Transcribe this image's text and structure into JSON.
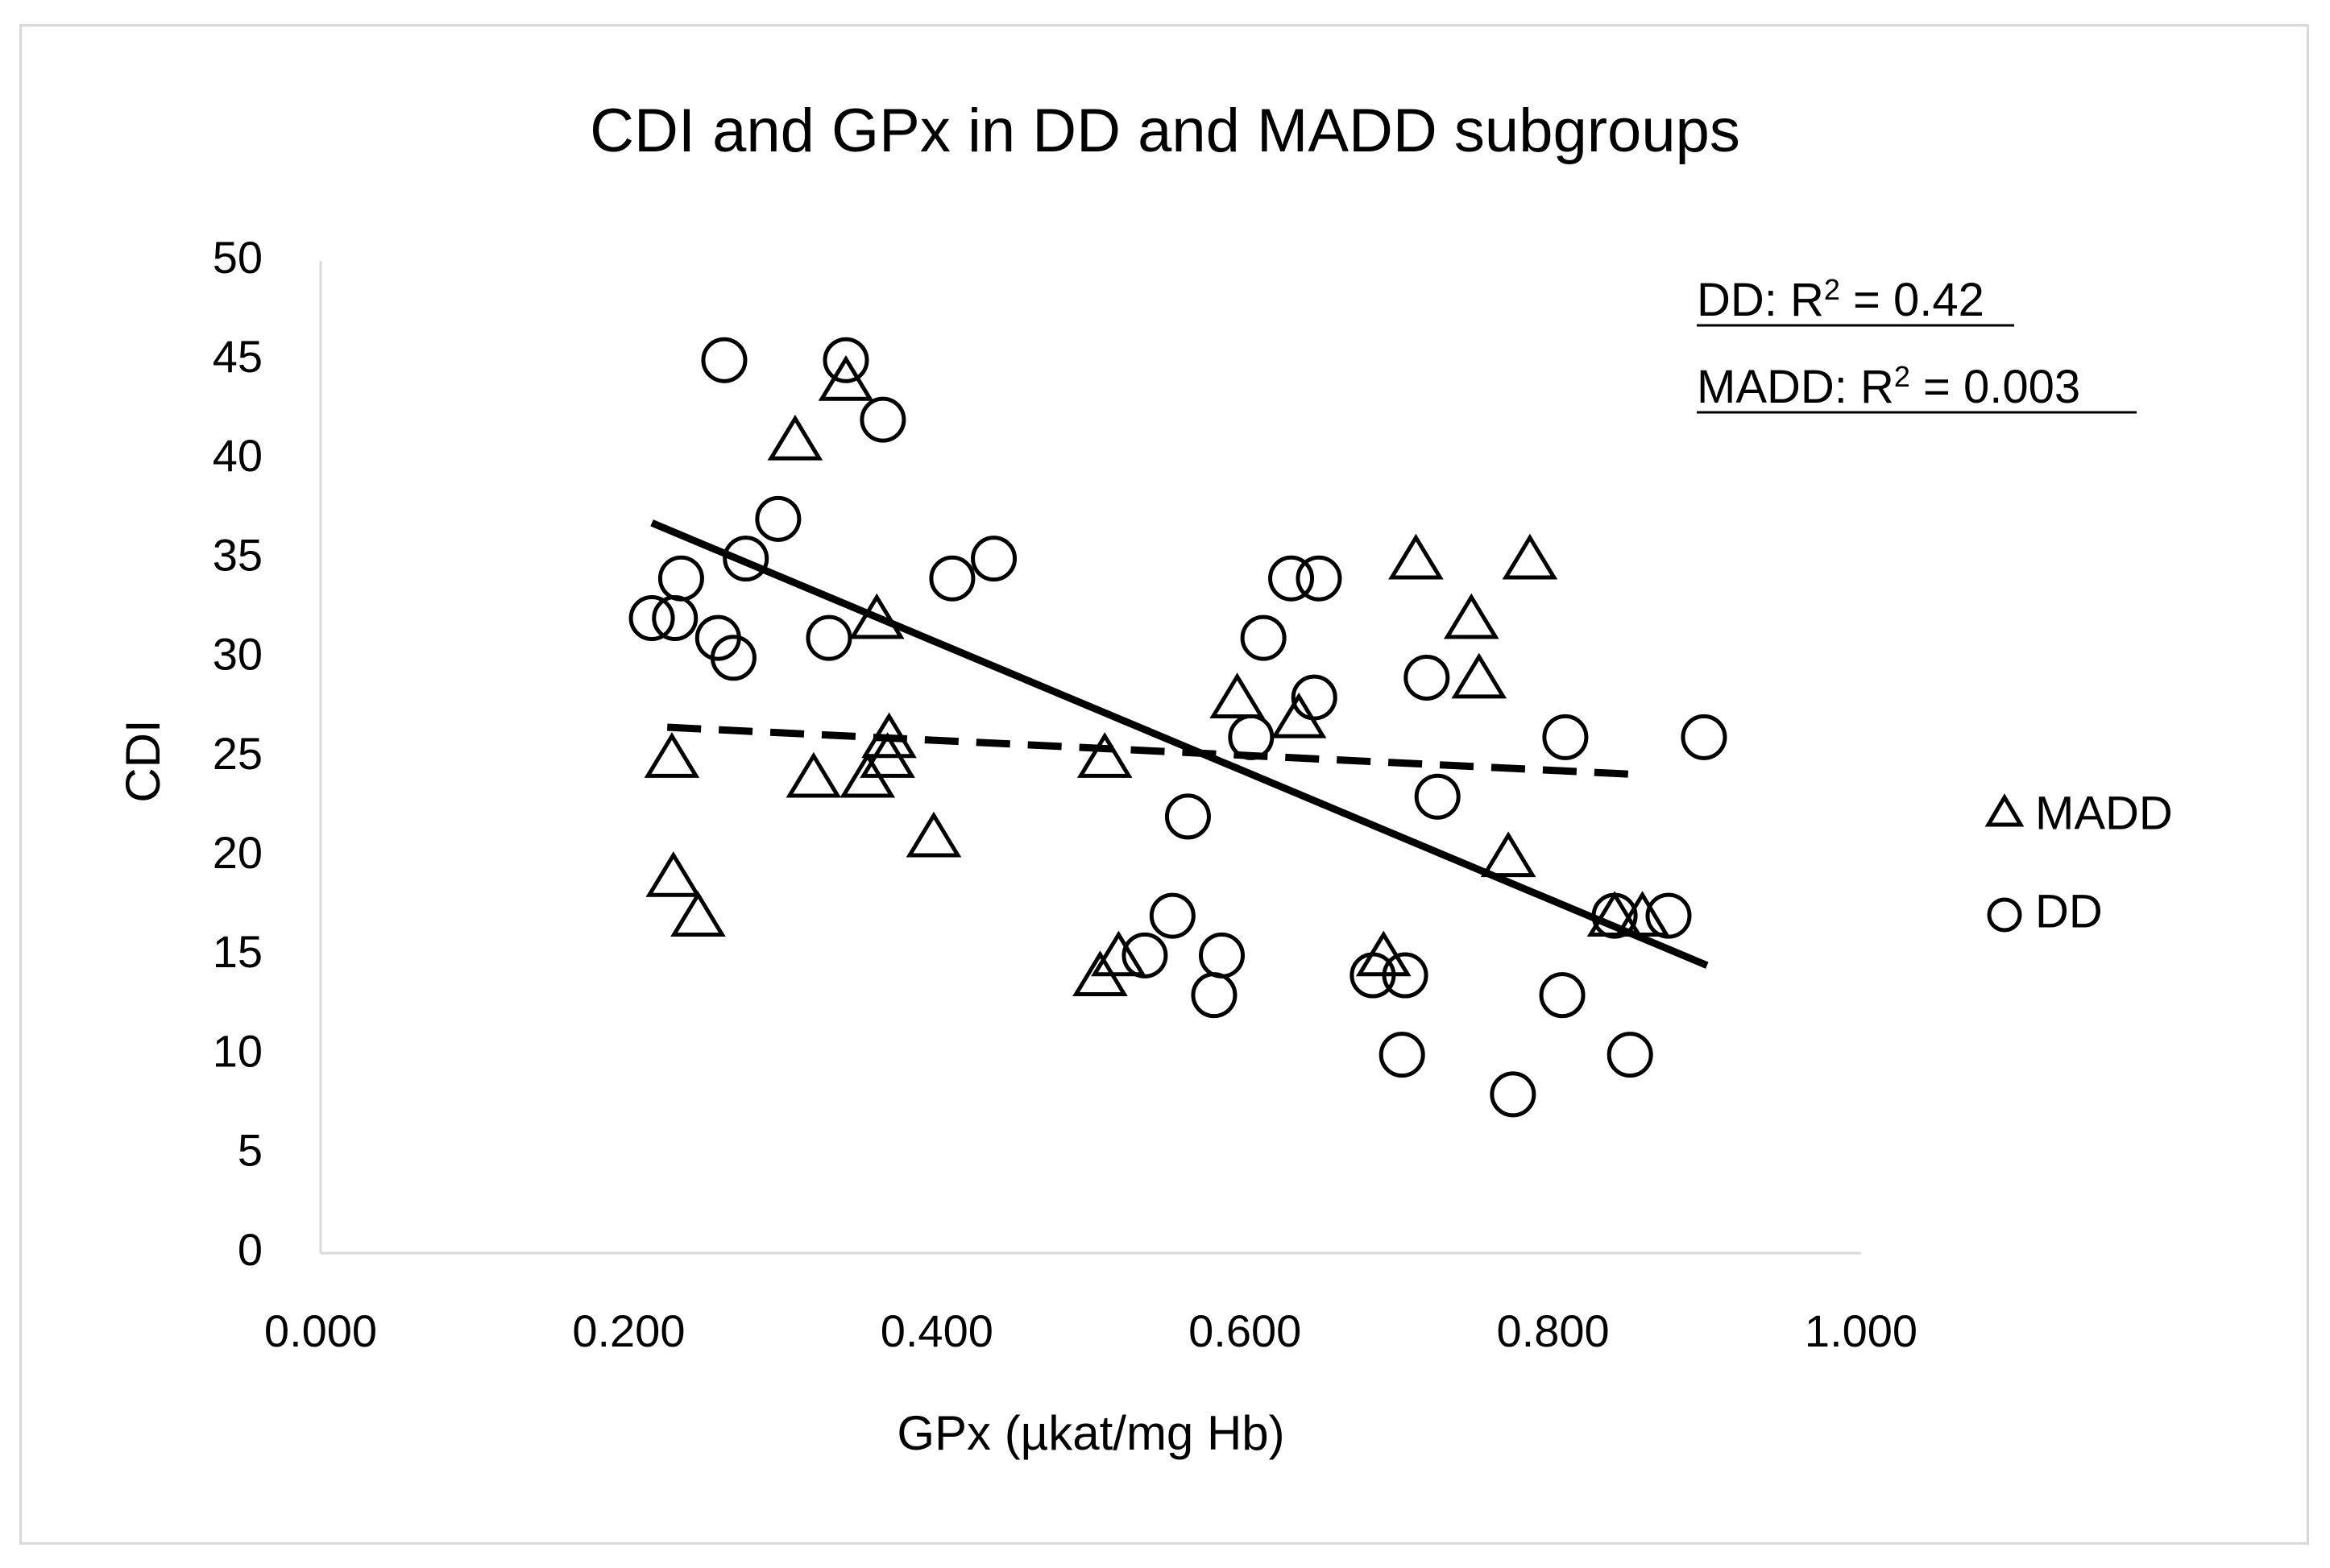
{
  "chart_data": {
    "type": "scatter",
    "title": "CDI and GPx in DD and MADD subgroups",
    "xlabel": "GPx (µkat/mg Hb)",
    "ylabel": "CDI",
    "xlim": [
      0,
      1
    ],
    "ylim": [
      0,
      50
    ],
    "x_ticks": [
      0,
      0.2,
      0.4,
      0.6,
      0.8,
      1.0
    ],
    "x_tick_labels": [
      "0.000",
      "0.200",
      "0.400",
      "0.600",
      "0.800",
      "1.000"
    ],
    "y_ticks": [
      0,
      5,
      10,
      15,
      20,
      25,
      30,
      35,
      40,
      45,
      50
    ],
    "y_tick_labels": [
      "0",
      "5",
      "10",
      "15",
      "20",
      "25",
      "30",
      "35",
      "40",
      "45",
      "50"
    ],
    "grid": false,
    "legend_position": "right",
    "annotations": [
      {
        "label": "DD: R",
        "sup": "2",
        "value": " = 0.42"
      },
      {
        "label": "MADD: R",
        "sup": "2",
        "value": " = 0.003"
      }
    ],
    "series": [
      {
        "name": "MADD",
        "marker": "triangle",
        "trendline": {
          "style": "dashed",
          "x": [
            0.225,
            0.86
          ],
          "y": [
            26.5,
            24.1
          ]
        },
        "points": [
          [
            0.228,
            25
          ],
          [
            0.229,
            19
          ],
          [
            0.245,
            17
          ],
          [
            0.308,
            41
          ],
          [
            0.32,
            24
          ],
          [
            0.341,
            44
          ],
          [
            0.355,
            24
          ],
          [
            0.361,
            32
          ],
          [
            0.368,
            25
          ],
          [
            0.369,
            26
          ],
          [
            0.398,
            21
          ],
          [
            0.506,
            14
          ],
          [
            0.509,
            25
          ],
          [
            0.518,
            15
          ],
          [
            0.595,
            28
          ],
          [
            0.635,
            27
          ],
          [
            0.69,
            15
          ],
          [
            0.711,
            35
          ],
          [
            0.747,
            32
          ],
          [
            0.752,
            29
          ],
          [
            0.771,
            20
          ],
          [
            0.785,
            35
          ],
          [
            0.84,
            17
          ],
          [
            0.858,
            17
          ]
        ]
      },
      {
        "name": "DD",
        "marker": "circle",
        "trendline": {
          "style": "solid",
          "x": [
            0.215,
            0.9
          ],
          "y": [
            36.8,
            14.5
          ]
        },
        "points": [
          [
            0.215,
            32
          ],
          [
            0.23,
            32
          ],
          [
            0.234,
            34
          ],
          [
            0.258,
            31
          ],
          [
            0.262,
            45
          ],
          [
            0.268,
            30
          ],
          [
            0.276,
            35
          ],
          [
            0.297,
            37
          ],
          [
            0.33,
            31
          ],
          [
            0.341,
            45
          ],
          [
            0.365,
            42
          ],
          [
            0.41,
            34
          ],
          [
            0.437,
            35
          ],
          [
            0.535,
            15
          ],
          [
            0.553,
            17
          ],
          [
            0.563,
            22
          ],
          [
            0.58,
            13
          ],
          [
            0.585,
            15
          ],
          [
            0.604,
            26
          ],
          [
            0.612,
            31
          ],
          [
            0.63,
            34
          ],
          [
            0.648,
            34
          ],
          [
            0.645,
            28
          ],
          [
            0.683,
            14
          ],
          [
            0.702,
            10
          ],
          [
            0.704,
            14
          ],
          [
            0.718,
            29
          ],
          [
            0.725,
            23
          ],
          [
            0.774,
            8
          ],
          [
            0.808,
            26
          ],
          [
            0.806,
            13
          ],
          [
            0.84,
            17
          ],
          [
            0.85,
            10
          ],
          [
            0.875,
            17
          ],
          [
            0.898,
            26
          ]
        ]
      }
    ]
  }
}
